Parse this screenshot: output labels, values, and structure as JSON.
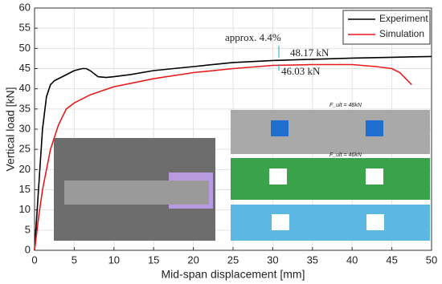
{
  "chart_data": {
    "type": "line",
    "x_label": "Mid-span displacement [mm]",
    "y_label": "Vertical load [kN]",
    "xlim": [
      0,
      50
    ],
    "xticks": [
      0,
      5,
      10,
      15,
      20,
      25,
      30,
      35,
      40,
      45,
      50
    ],
    "ylim": [
      0,
      60
    ],
    "yticks": [
      0,
      5,
      10,
      15,
      20,
      25,
      30,
      35,
      40,
      45,
      50,
      55,
      60
    ],
    "grid": true,
    "legend": "upper right",
    "series": [
      {
        "name": "Experiment",
        "color": "#000000",
        "x": [
          0,
          0.5,
          1,
          1.5,
          2,
          2.5,
          3,
          4,
          5,
          6,
          6.5,
          7,
          8,
          9,
          10,
          12,
          15,
          20,
          25,
          30,
          35,
          40,
          45,
          50
        ],
        "values": [
          0,
          15,
          30,
          38,
          41,
          42,
          42.5,
          43.5,
          44.5,
          45,
          45,
          44.5,
          43,
          42.8,
          43,
          43.5,
          44.5,
          45.5,
          46.5,
          47,
          47.3,
          47.6,
          47.8,
          48
        ]
      },
      {
        "name": "Simulation",
        "color": "#e8191c",
        "x": [
          0,
          0.5,
          1,
          2,
          3,
          4,
          5,
          7,
          10,
          15,
          20,
          25,
          30,
          35,
          40,
          43,
          45,
          46,
          47,
          47.5
        ],
        "values": [
          0,
          8,
          15,
          25,
          31,
          35,
          36.5,
          38.5,
          40.5,
          42.5,
          44,
          45,
          45.8,
          46,
          46,
          45.5,
          45,
          44,
          42,
          41
        ]
      }
    ],
    "annotations": [
      {
        "text": "approx. 4.4%",
        "color": "#1aa7c9"
      },
      {
        "text": "48.17 kN",
        "color": "#e8191c"
      },
      {
        "text": "46.03 kN",
        "color": "#222222"
      },
      {
        "text": "F_ult = 48kN",
        "color": "#222222"
      },
      {
        "text": "F_ult = 46kN",
        "color": "#222222"
      }
    ]
  }
}
